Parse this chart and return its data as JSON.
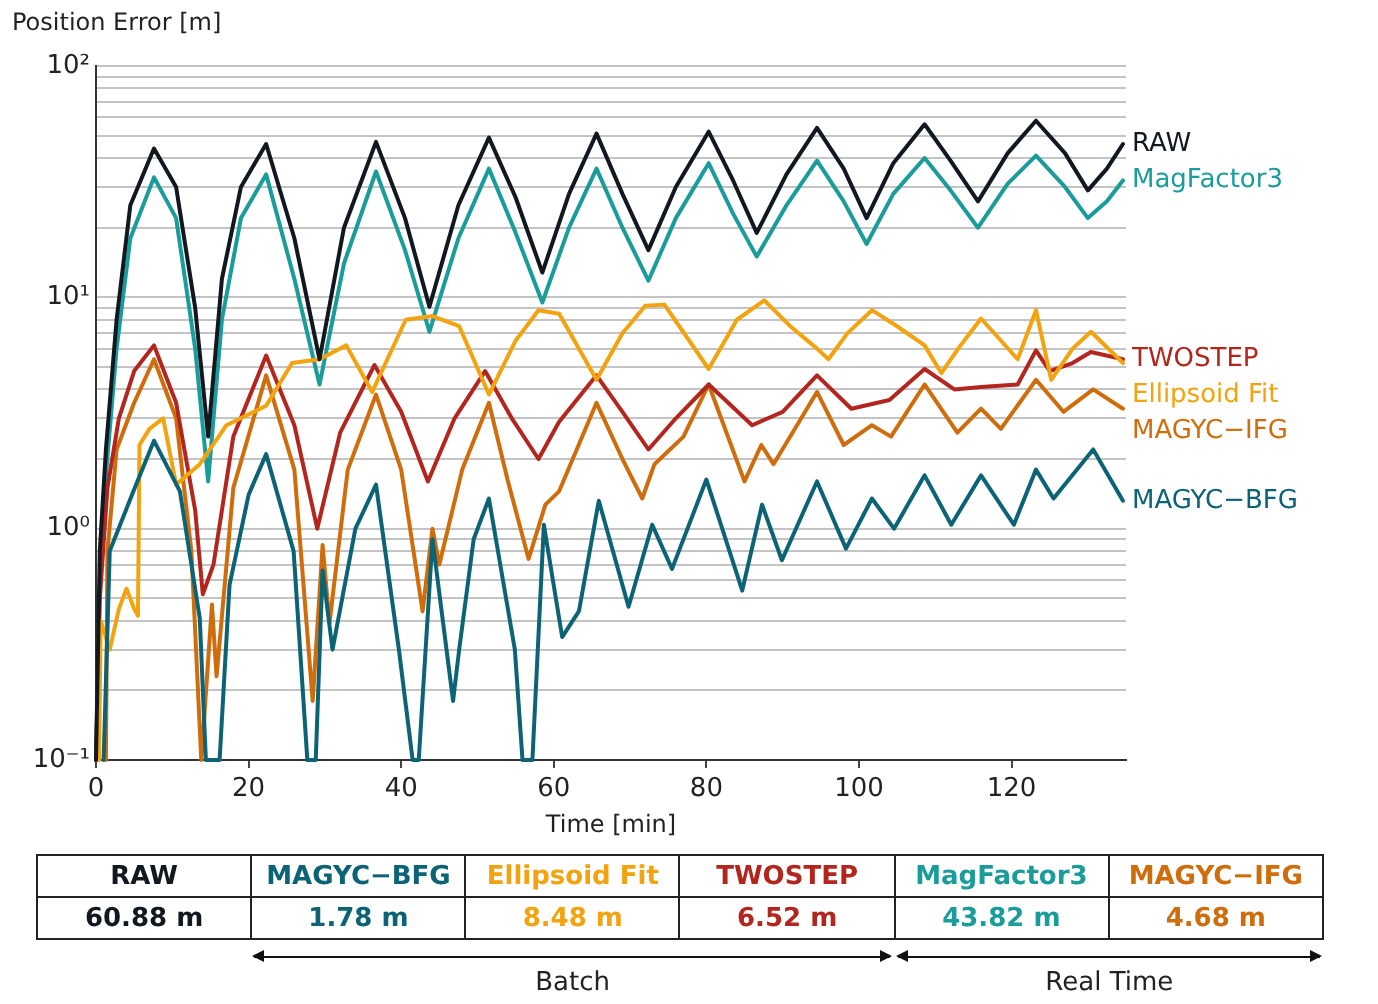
{
  "chart_data": {
    "type": "line",
    "ylabel": "Position Error [m]",
    "xlabel": "Time [min]",
    "log": "y",
    "grid": "y",
    "legend": "right",
    "marker": "none",
    "line_style": "solid",
    "xlim": [
      0,
      135
    ],
    "xticks": [
      0,
      20,
      40,
      60,
      80,
      100,
      120
    ],
    "ylim": [
      0.1,
      100
    ],
    "yticks": [
      {
        "value": 0.1,
        "label": "10⁻¹"
      },
      {
        "value": 0.2,
        "label": null
      },
      {
        "value": 0.3,
        "label": null
      },
      {
        "value": 0.4,
        "label": null
      },
      {
        "value": 0.5,
        "label": null
      },
      {
        "value": 0.6,
        "label": null
      },
      {
        "value": 0.7,
        "label": null
      },
      {
        "value": 0.8,
        "label": null
      },
      {
        "value": 0.9,
        "label": null
      },
      {
        "value": 1,
        "label": "10⁰"
      },
      {
        "value": 2,
        "label": null
      },
      {
        "value": 3,
        "label": null
      },
      {
        "value": 4,
        "label": null
      },
      {
        "value": 5,
        "label": null
      },
      {
        "value": 6,
        "label": null
      },
      {
        "value": 7,
        "label": null
      },
      {
        "value": 8,
        "label": null
      },
      {
        "value": 9,
        "label": null
      },
      {
        "value": 10,
        "label": "10¹"
      },
      {
        "value": 20,
        "label": null
      },
      {
        "value": 30,
        "label": null
      },
      {
        "value": 40,
        "label": null
      },
      {
        "value": 50,
        "label": null
      },
      {
        "value": 60,
        "label": null
      },
      {
        "value": 70,
        "label": null
      },
      {
        "value": 80,
        "label": null
      },
      {
        "value": 90,
        "label": null
      },
      {
        "value": 100,
        "label": "10²"
      }
    ],
    "x": [
      0,
      0.5,
      1.3,
      2.7,
      4.5,
      7.6,
      10.5,
      13,
      14.7,
      16.5,
      19,
      22.3,
      26,
      29.3,
      32.5,
      36.7,
      40.5,
      43.7,
      47.5,
      51.5,
      55,
      58.5,
      62,
      65.6,
      69,
      72.4,
      76,
      80.3,
      83.5,
      86.6,
      90.5,
      94.5,
      98,
      101,
      104.5,
      108.6,
      112,
      115.6,
      119.5,
      123.2,
      127,
      130,
      132.5,
      134.6
    ],
    "series": [
      {
        "name": "RAW",
        "color": "#111820",
        "values": [
          0.1,
          0.8,
          2.2,
          8,
          25,
          44,
          30,
          9,
          2.5,
          12,
          30,
          46,
          18,
          5.4,
          20,
          47,
          22,
          9.1,
          25,
          49,
          27,
          12.8,
          28,
          51,
          28,
          16,
          30,
          52,
          32,
          19,
          34,
          54,
          36,
          22,
          38,
          56,
          39,
          26,
          42,
          58,
          42,
          29,
          36,
          46
        ]
      },
      {
        "name": "MAGYC−BFG",
        "color": "#0b6375",
        "x": [
          1.0,
          1.8,
          4.9,
          7.6,
          11,
          13.6,
          14.4,
          16.2,
          17.5,
          20,
          22.3,
          25.9,
          27.7,
          28.8,
          29.7,
          31,
          34,
          36.7,
          39.7,
          41.5,
          42.3,
          44.1,
          46.8,
          47.6,
          49.5,
          51.5,
          54.9,
          55.9,
          57.2,
          58.7,
          61.1,
          63.3,
          65.9,
          69.8,
          72.9,
          75.5,
          80,
          84.7,
          87.3,
          89.9,
          94.5,
          98.3,
          101.7,
          104.6,
          108.6,
          112.1,
          116,
          120.3,
          123.2,
          125.5,
          130.7,
          134.6
        ],
        "values": [
          0.1,
          0.8,
          1.45,
          2.4,
          1.45,
          0.41,
          0.1,
          0.1,
          0.57,
          1.4,
          2.1,
          0.8,
          0.1,
          0.1,
          0.66,
          0.3,
          1.0,
          1.55,
          0.3,
          0.1,
          0.1,
          0.9,
          0.18,
          0.3,
          0.9,
          1.35,
          0.3,
          0.1,
          0.1,
          1.04,
          0.34,
          0.44,
          1.32,
          0.46,
          1.04,
          0.67,
          1.63,
          0.54,
          1.27,
          0.73,
          1.6,
          0.82,
          1.35,
          1.0,
          1.7,
          1.04,
          1.7,
          1.04,
          1.8,
          1.35,
          2.2,
          1.32
        ]
      },
      {
        "name": "Ellipsoid Fit",
        "color": "#f2a30f",
        "x": [
          0.4,
          0.6,
          1.8,
          3,
          4,
          5.0,
          5.5,
          5.7,
          7,
          8.8,
          10.5,
          13.6,
          17.1,
          22.3,
          25.7,
          29.3,
          32.8,
          36.2,
          40.6,
          44.1,
          47.6,
          51.5,
          55,
          58,
          60.7,
          65.6,
          69,
          72,
          74.5,
          80.3,
          84,
          87.6,
          91,
          94.5,
          96,
          98.5,
          101.7,
          105,
          108.6,
          110.8,
          113,
          116,
          120.8,
          123.2,
          125.2,
          128,
          130.4,
          134.6
        ],
        "values": [
          0.1,
          0.4,
          0.3,
          0.45,
          0.55,
          0.45,
          0.42,
          2.3,
          2.7,
          3.0,
          1.55,
          1.9,
          2.8,
          3.4,
          5.2,
          5.4,
          6.2,
          3.9,
          8.0,
          8.3,
          7.5,
          3.8,
          6.5,
          8.8,
          8.5,
          4.4,
          7,
          9.2,
          9.3,
          4.9,
          8,
          9.7,
          7.5,
          6.0,
          5.4,
          7,
          8.8,
          7.5,
          6.2,
          4.7,
          6,
          8.1,
          5.4,
          8.8,
          4.4,
          6,
          7.1,
          5.2
        ]
      },
      {
        "name": "TWOSTEP",
        "color": "#b3261e",
        "x": [
          0,
          0.5,
          1.5,
          3,
          5,
          7.6,
          10.5,
          13,
          14,
          15.4,
          18,
          22.3,
          26,
          29,
          32,
          36.5,
          40,
          43.5,
          47,
          51,
          54.5,
          58,
          60.7,
          65.6,
          69,
          72.4,
          76,
          80.3,
          86,
          90,
          94.5,
          99,
          104,
          108.6,
          112.5,
          116,
          120.8,
          123.2,
          125,
          128,
          130.4,
          134.6
        ],
        "values": [
          0.1,
          0.5,
          1.5,
          3,
          4.8,
          6.2,
          3.5,
          1.2,
          0.52,
          0.7,
          2.5,
          5.6,
          2.8,
          1.0,
          2.6,
          5.1,
          3.2,
          1.6,
          3.0,
          4.8,
          3.0,
          2.0,
          2.9,
          4.6,
          3.2,
          2.2,
          3.0,
          4.2,
          2.8,
          3.2,
          4.6,
          3.3,
          3.6,
          4.9,
          4.0,
          4.1,
          4.2,
          5.9,
          4.8,
          5.2,
          5.8,
          5.4
        ]
      },
      {
        "name": "MagFactor3",
        "color": "#1a9c9a",
        "values": [
          0.1,
          0.6,
          1.7,
          6,
          18,
          33,
          22,
          6,
          1.6,
          8,
          22,
          34,
          12,
          4.2,
          14,
          35,
          16,
          7.1,
          18,
          36,
          19,
          9.5,
          20,
          36,
          20,
          11.8,
          22,
          38,
          23,
          15,
          25,
          39,
          26,
          17,
          28,
          40,
          29,
          20,
          31,
          41,
          30,
          22,
          26,
          32
        ]
      },
      {
        "name": "MAGYC−IFG",
        "color": "#cf6d0c",
        "x": [
          1.3,
          1.5,
          2.7,
          5,
          7.6,
          10.5,
          12.5,
          13.8,
          15.2,
          15.8,
          18,
          22.3,
          26,
          28.4,
          29.7,
          30.6,
          33,
          36.7,
          40,
          42.8,
          44.1,
          45,
          48,
          51.5,
          54,
          56.7,
          58.9,
          60.7,
          65.6,
          69,
          71.6,
          73.2,
          77,
          80.3,
          85,
          87.2,
          88.8,
          94.5,
          98,
          101.7,
          104.2,
          108.6,
          112.9,
          116,
          118.6,
          123.2,
          126.8,
          130.7,
          134.6
        ],
        "values": [
          0.1,
          0.8,
          2.2,
          3.5,
          5.4,
          3,
          0.8,
          0.1,
          0.47,
          0.23,
          1.5,
          4.6,
          1.8,
          0.18,
          0.85,
          0.39,
          1.8,
          3.8,
          1.8,
          0.44,
          1.0,
          0.7,
          1.8,
          3.5,
          1.6,
          0.74,
          1.27,
          1.45,
          3.5,
          2.0,
          1.35,
          1.9,
          2.5,
          4.2,
          1.6,
          2.3,
          1.9,
          3.9,
          2.3,
          2.8,
          2.5,
          4.2,
          2.6,
          3.3,
          2.7,
          4.4,
          3.2,
          4.0,
          3.3
        ]
      }
    ],
    "annotations": [
      "60.88 m",
      "1.78 m",
      "8.48 m",
      "6.52 m",
      "43.82 m",
      "4.68 m",
      "Batch",
      "Real Time"
    ]
  }
}
